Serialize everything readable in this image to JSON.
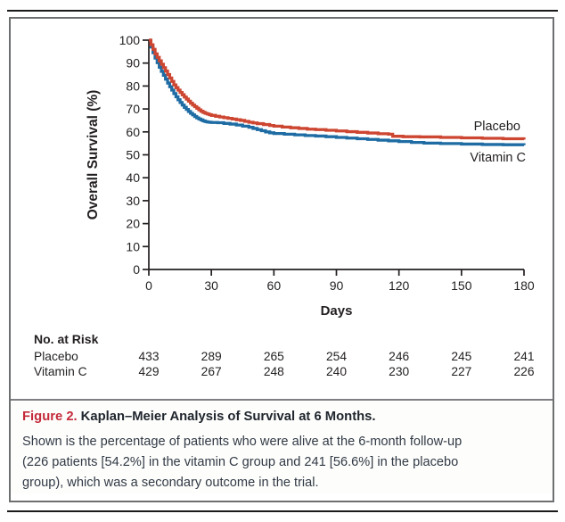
{
  "caption": {
    "figure_label": "Figure 2.",
    "title": "Kaplan–Meier Analysis of Survival at 6 Months.",
    "body": "Shown is the percentage of patients who were alive at the 6-month follow-up\n(226 patients [54.2%] in the vitamin C group and 241 [56.6%] in the placebo\ngroup), which was a secondary outcome in the trial."
  },
  "colors": {
    "placebo_line": "#cd4631",
    "vitamin_c_line": "#1e6ca3",
    "figure_label_red": "#c4293a",
    "axis_text": "#231f20",
    "box_border": "#6e6f71",
    "page_rule": "#1a1a1a"
  },
  "chart_data": {
    "type": "line",
    "subtype": "kaplan-meier-step",
    "title": "",
    "xlabel": "Days",
    "ylabel": "Overall Survival (%)",
    "xlim": [
      0,
      180
    ],
    "ylim": [
      0,
      100
    ],
    "x_ticks": [
      0,
      30,
      60,
      90,
      120,
      150,
      180
    ],
    "y_ticks": [
      0,
      10,
      20,
      30,
      40,
      50,
      60,
      70,
      80,
      90,
      100
    ],
    "grid": false,
    "legend_position": "end-of-line-labels",
    "series": [
      {
        "name": "Placebo",
        "color": "#cd4631",
        "points": [
          [
            0,
            100
          ],
          [
            1,
            98
          ],
          [
            2,
            96
          ],
          [
            3,
            94
          ],
          [
            4,
            92.5
          ],
          [
            5,
            91
          ],
          [
            6,
            89.5
          ],
          [
            7,
            88
          ],
          [
            8,
            86.5
          ],
          [
            9,
            85
          ],
          [
            10,
            83.5
          ],
          [
            11,
            82
          ],
          [
            12,
            80.5
          ],
          [
            13,
            79.3
          ],
          [
            14,
            78.2
          ],
          [
            15,
            77.2
          ],
          [
            16,
            76.2
          ],
          [
            17,
            75.2
          ],
          [
            18,
            74.3
          ],
          [
            19,
            73.4
          ],
          [
            20,
            72.5
          ],
          [
            21,
            71.7
          ],
          [
            22,
            71
          ],
          [
            23,
            70.3
          ],
          [
            24,
            69.6
          ],
          [
            25,
            69
          ],
          [
            26,
            68.5
          ],
          [
            27,
            68.1
          ],
          [
            28,
            67.8
          ],
          [
            29,
            67.5
          ],
          [
            30,
            67.2
          ],
          [
            32,
            66.8
          ],
          [
            34,
            66.5
          ],
          [
            36,
            66.2
          ],
          [
            38,
            65.9
          ],
          [
            40,
            65.6
          ],
          [
            42,
            65.3
          ],
          [
            44,
            65
          ],
          [
            46,
            64.6
          ],
          [
            48,
            64.2
          ],
          [
            50,
            63.9
          ],
          [
            52,
            63.6
          ],
          [
            55,
            63.2
          ],
          [
            58,
            62.8
          ],
          [
            60,
            62.5
          ],
          [
            64,
            62.1
          ],
          [
            68,
            61.8
          ],
          [
            72,
            61.5
          ],
          [
            76,
            61.2
          ],
          [
            80,
            61
          ],
          [
            85,
            60.7
          ],
          [
            90,
            60.4
          ],
          [
            95,
            60.1
          ],
          [
            100,
            59.8
          ],
          [
            105,
            59.5
          ],
          [
            110,
            59.2
          ],
          [
            115,
            59
          ],
          [
            117,
            58.1
          ],
          [
            122,
            57.9
          ],
          [
            130,
            57.8
          ],
          [
            140,
            57.6
          ],
          [
            150,
            57.4
          ],
          [
            160,
            57.2
          ],
          [
            170,
            57
          ],
          [
            180,
            56.6
          ]
        ]
      },
      {
        "name": "Vitamin C",
        "color": "#1e6ca3",
        "points": [
          [
            0,
            100
          ],
          [
            1,
            97
          ],
          [
            2,
            94.5
          ],
          [
            3,
            92.2
          ],
          [
            4,
            90.2
          ],
          [
            5,
            88.2
          ],
          [
            6,
            86.4
          ],
          [
            7,
            84.7
          ],
          [
            8,
            83
          ],
          [
            9,
            81.3
          ],
          [
            10,
            79.7
          ],
          [
            11,
            78.2
          ],
          [
            12,
            76.7
          ],
          [
            13,
            75.3
          ],
          [
            14,
            74
          ],
          [
            15,
            72.8
          ],
          [
            16,
            71.7
          ],
          [
            17,
            70.7
          ],
          [
            18,
            69.8
          ],
          [
            19,
            68.9
          ],
          [
            20,
            68.1
          ],
          [
            21,
            67.4
          ],
          [
            22,
            66.7
          ],
          [
            23,
            66.1
          ],
          [
            24,
            65.6
          ],
          [
            25,
            65.2
          ],
          [
            26,
            64.8
          ],
          [
            27,
            64.5
          ],
          [
            28,
            64.3
          ],
          [
            29,
            64.2
          ],
          [
            30,
            64.1
          ],
          [
            33,
            64
          ],
          [
            36,
            63.7
          ],
          [
            39,
            63.4
          ],
          [
            42,
            63
          ],
          [
            45,
            62.5
          ],
          [
            48,
            62
          ],
          [
            50,
            61.5
          ],
          [
            52,
            61
          ],
          [
            54,
            60.5
          ],
          [
            56,
            60
          ],
          [
            58,
            59.6
          ],
          [
            60,
            59.3
          ],
          [
            65,
            59
          ],
          [
            70,
            58.7
          ],
          [
            75,
            58.4
          ],
          [
            80,
            58.2
          ],
          [
            85,
            57.9
          ],
          [
            90,
            57.6
          ],
          [
            95,
            57.3
          ],
          [
            100,
            57
          ],
          [
            105,
            56.7
          ],
          [
            110,
            56.4
          ],
          [
            115,
            56.1
          ],
          [
            120,
            55.8
          ],
          [
            126,
            55.4
          ],
          [
            132,
            55.1
          ],
          [
            140,
            54.9
          ],
          [
            150,
            54.7
          ],
          [
            160,
            54.5
          ],
          [
            170,
            54.4
          ],
          [
            180,
            54.2
          ]
        ]
      }
    ],
    "at_risk": {
      "header": "No. at Risk",
      "time_points": [
        0,
        30,
        60,
        90,
        120,
        150,
        180
      ],
      "rows": [
        {
          "label": "Placebo",
          "values": [
            433,
            289,
            265,
            254,
            246,
            245,
            241
          ]
        },
        {
          "label": "Vitamin C",
          "values": [
            429,
            267,
            248,
            240,
            230,
            227,
            226
          ]
        }
      ]
    }
  }
}
